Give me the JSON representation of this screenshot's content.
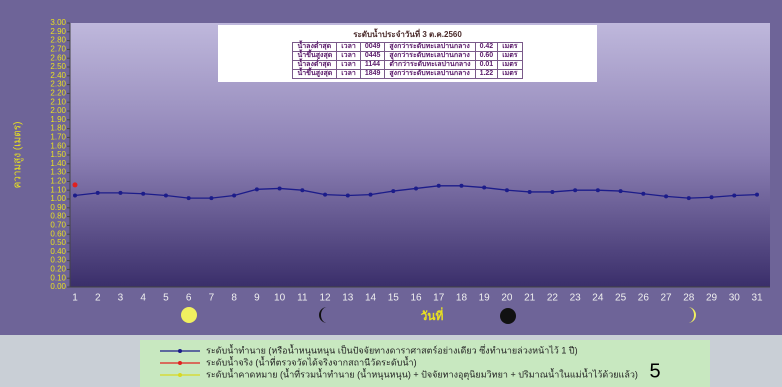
{
  "chart_data": {
    "type": "line",
    "y_label": "ความสูง (เมตร)",
    "x_label": "วันที่",
    "categories": [
      "1",
      "2",
      "3",
      "4",
      "5",
      "6",
      "7",
      "8",
      "9",
      "10",
      "11",
      "12",
      "13",
      "14",
      "15",
      "16",
      "17",
      "18",
      "19",
      "20",
      "21",
      "22",
      "23",
      "24",
      "25",
      "26",
      "27",
      "28",
      "29",
      "30",
      "31"
    ],
    "series": [
      {
        "name": "ระดับน้ำทำนาย (หรือน้ำหนุนหนุน เป็นปัจจัยทางดาราศาสตร์อย่างเดียว ซึ่งทำนายล่วงหน้าไว้ 1 ปี)",
        "color": "#1c1c8a",
        "values": [
          1.04,
          1.07,
          1.07,
          1.06,
          1.04,
          1.01,
          1.01,
          1.04,
          1.11,
          1.12,
          1.1,
          1.05,
          1.04,
          1.05,
          1.09,
          1.12,
          1.15,
          1.15,
          1.13,
          1.1,
          1.08,
          1.08,
          1.1,
          1.1,
          1.09,
          1.06,
          1.03,
          1.01,
          1.02,
          1.04,
          1.05
        ]
      },
      {
        "name": "ระดับน้ำจริง (น้ำที่ตรวจวัดได้จริงจากสถานีวัดระดับน้ำ)",
        "color": "#e02020",
        "values": [
          1.16,
          null,
          null,
          null,
          null,
          null,
          null,
          null,
          null,
          null,
          null,
          null,
          null,
          null,
          null,
          null,
          null,
          null,
          null,
          null,
          null,
          null,
          null,
          null,
          null,
          null,
          null,
          null,
          null,
          null,
          null
        ]
      },
      {
        "name": "ระดับน้ำคาดหมาย (น้ำที่รวมน้ำทำนาย (น้ำหนุนหนุน) + ปัจจัยทางอุตุนิยมวิทยา + ปริมาณน้ำในแม่น้ำไว้ด้วยแล้ว)",
        "color": "#d8d820",
        "values": [
          null,
          null,
          null,
          null,
          null,
          null,
          null,
          null,
          null,
          null,
          null,
          null,
          null,
          null,
          null,
          null,
          null,
          null,
          null,
          null,
          null,
          null,
          null,
          null,
          null,
          null,
          null,
          null,
          null,
          null,
          null
        ]
      }
    ],
    "ylim": [
      0,
      3
    ],
    "yticks": [
      {
        "value": 0,
        "label": "0.00"
      },
      {
        "value": 0.1,
        "label": "0.10"
      },
      {
        "value": 0.2,
        "label": "0.20"
      },
      {
        "value": 0.3,
        "label": "0.30"
      },
      {
        "value": 0.4,
        "label": "0.40"
      },
      {
        "value": 0.5,
        "label": "0.50"
      },
      {
        "value": 0.6,
        "label": "0.60"
      },
      {
        "value": 0.7,
        "label": "0.70"
      },
      {
        "value": 0.8,
        "label": "0.80"
      },
      {
        "value": 0.9,
        "label": "0.90"
      },
      {
        "value": 1,
        "label": "1.00"
      },
      {
        "value": 1.1,
        "label": "1.10"
      },
      {
        "value": 1.2,
        "label": "1.20"
      },
      {
        "value": 1.3,
        "label": "1.30"
      },
      {
        "value": 1.4,
        "label": "1.40"
      },
      {
        "value": 1.5,
        "label": "1.50"
      },
      {
        "value": 1.6,
        "label": "1.60"
      },
      {
        "value": 1.7,
        "label": "1.70"
      },
      {
        "value": 1.8,
        "label": "1.80"
      },
      {
        "value": 1.9,
        "label": "1.90"
      },
      {
        "value": 2,
        "label": "2.00"
      },
      {
        "value": 2.1,
        "label": "2.10"
      },
      {
        "value": 2.2,
        "label": "2.20"
      },
      {
        "value": 2.3,
        "label": "2.30"
      },
      {
        "value": 2.4,
        "label": "2.40"
      },
      {
        "value": 2.5,
        "label": "2.50"
      },
      {
        "value": 2.6,
        "label": "2.60"
      },
      {
        "value": 2.7,
        "label": "2.70"
      },
      {
        "value": 2.8,
        "label": "2.80"
      },
      {
        "value": 2.9,
        "label": "2.90"
      },
      {
        "value": 3,
        "label": "3.00"
      }
    ],
    "grid": false
  },
  "table": {
    "title": "ระดับน้ำประจำวันที่ 3 ต.ค.2560",
    "rows": [
      [
        "น้ำลงต่ำสุด",
        "เวลา",
        "0049",
        "สูงกว่าระดับทะเลปานกลาง",
        "0.42",
        "เมตร"
      ],
      [
        "น้ำขึ้นสูงสุด",
        "เวลา",
        "0445",
        "สูงกว่าระดับทะเลปานกลาง",
        "0.60",
        "เมตร"
      ],
      [
        "น้ำลงต่ำสุด",
        "เวลา",
        "1144",
        "ต่ำกว่าระดับทะเลปานกลาง",
        "0.01",
        "เมตร"
      ],
      [
        "น้ำขึ้นสูงสุด",
        "เวลา",
        "1849",
        "สูงกว่าระดับทะเลปานกลาง",
        "1.22",
        "เมตร"
      ]
    ]
  },
  "page_number": "5"
}
